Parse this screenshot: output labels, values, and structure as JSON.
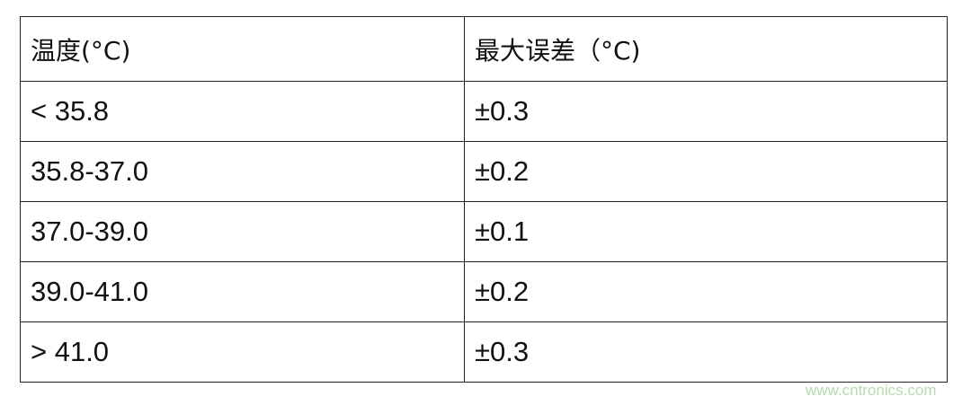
{
  "table": {
    "headers": [
      "温度(°C)",
      "最大误差（°C)"
    ],
    "rows": [
      [
        "< 35.8",
        "±0.3"
      ],
      [
        "35.8-37.0",
        "±0.2"
      ],
      [
        "37.0-39.0",
        "±0.1"
      ],
      [
        "39.0-41.0",
        "±0.2"
      ],
      [
        "> 41.0",
        "±0.3"
      ]
    ]
  },
  "watermark": "www.cntronics.com"
}
